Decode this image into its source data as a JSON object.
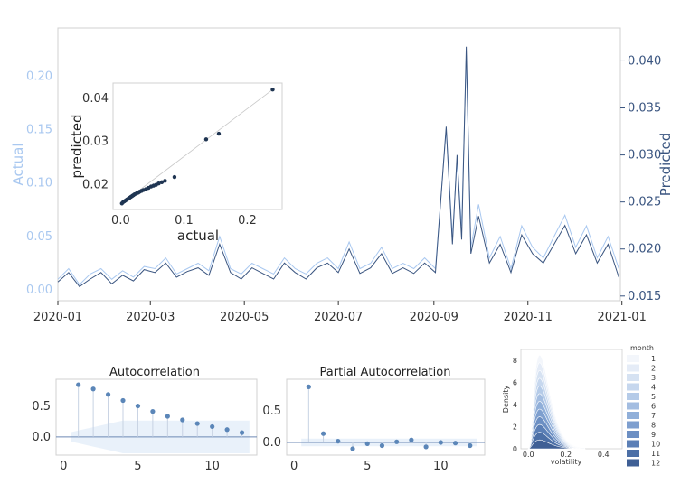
{
  "colors": {
    "actual": "#a9c8f0",
    "predicted": "#3a5580",
    "acf_band": "#dbe7f6",
    "grid": "#e8ecf2"
  },
  "chart_data": [
    {
      "type": "line",
      "xlabel": "",
      "ylabel_left": "Actual",
      "ylabel_right": "Predicted",
      "x_range": [
        "2020-01-01",
        "2020-12-31"
      ],
      "x_ticks": [
        "2020-01",
        "2020-03",
        "2020-05",
        "2020-07",
        "2020-09",
        "2020-11",
        "2021-01"
      ],
      "ylim_left": [
        -0.01,
        0.245
      ],
      "yticks_left": [
        "0.00",
        "0.05",
        "0.10",
        "0.15",
        "0.20"
      ],
      "ylim_right": [
        0.0145,
        0.0435
      ],
      "yticks_right": [
        "0.015",
        "0.020",
        "0.025",
        "0.030",
        "0.035",
        "0.040"
      ],
      "series": [
        {
          "axis": "left",
          "dates": [
            "2020-01-01",
            "2020-01-08",
            "2020-01-15",
            "2020-01-22",
            "2020-01-29",
            "2020-02-05",
            "2020-02-12",
            "2020-02-19",
            "2020-02-26",
            "2020-03-04",
            "2020-03-11",
            "2020-03-18",
            "2020-03-25",
            "2020-04-01",
            "2020-04-08",
            "2020-04-15",
            "2020-04-22",
            "2020-04-29",
            "2020-05-06",
            "2020-05-13",
            "2020-05-20",
            "2020-05-27",
            "2020-06-03",
            "2020-06-10",
            "2020-06-17",
            "2020-06-24",
            "2020-07-01",
            "2020-07-08",
            "2020-07-15",
            "2020-07-22",
            "2020-07-29",
            "2020-08-05",
            "2020-08-12",
            "2020-08-19",
            "2020-08-26",
            "2020-09-02",
            "2020-09-09",
            "2020-09-13",
            "2020-09-16",
            "2020-09-19",
            "2020-09-22",
            "2020-09-25",
            "2020-09-30",
            "2020-10-07",
            "2020-10-14",
            "2020-10-21",
            "2020-10-28",
            "2020-11-04",
            "2020-11-11",
            "2020-11-18",
            "2020-11-25",
            "2020-12-02",
            "2020-12-09",
            "2020-12-16",
            "2020-12-23",
            "2020-12-30"
          ],
          "values": [
            0.01,
            0.02,
            0.005,
            0.015,
            0.02,
            0.01,
            0.018,
            0.012,
            0.022,
            0.02,
            0.03,
            0.015,
            0.02,
            0.025,
            0.018,
            0.05,
            0.02,
            0.015,
            0.025,
            0.02,
            0.015,
            0.03,
            0.02,
            0.015,
            0.025,
            0.03,
            0.02,
            0.045,
            0.02,
            0.025,
            0.04,
            0.02,
            0.025,
            0.02,
            0.03,
            0.02,
            0.15,
            0.05,
            0.12,
            0.06,
            0.22,
            0.04,
            0.08,
            0.03,
            0.05,
            0.02,
            0.06,
            0.04,
            0.03,
            0.05,
            0.07,
            0.04,
            0.06,
            0.03,
            0.05,
            0.02
          ]
        },
        {
          "axis": "right",
          "dates": [
            "2020-01-01",
            "2020-01-08",
            "2020-01-15",
            "2020-01-22",
            "2020-01-29",
            "2020-02-05",
            "2020-02-12",
            "2020-02-19",
            "2020-02-26",
            "2020-03-04",
            "2020-03-11",
            "2020-03-18",
            "2020-03-25",
            "2020-04-01",
            "2020-04-08",
            "2020-04-15",
            "2020-04-22",
            "2020-04-29",
            "2020-05-06",
            "2020-05-13",
            "2020-05-20",
            "2020-05-27",
            "2020-06-03",
            "2020-06-10",
            "2020-06-17",
            "2020-06-24",
            "2020-07-01",
            "2020-07-08",
            "2020-07-15",
            "2020-07-22",
            "2020-07-29",
            "2020-08-05",
            "2020-08-12",
            "2020-08-19",
            "2020-08-26",
            "2020-09-02",
            "2020-09-09",
            "2020-09-13",
            "2020-09-16",
            "2020-09-19",
            "2020-09-22",
            "2020-09-25",
            "2020-09-30",
            "2020-10-07",
            "2020-10-14",
            "2020-10-21",
            "2020-10-28",
            "2020-11-04",
            "2020-11-11",
            "2020-11-18",
            "2020-11-25",
            "2020-12-02",
            "2020-12-09",
            "2020-12-16",
            "2020-12-23",
            "2020-12-30"
          ],
          "values": [
            0.0165,
            0.0175,
            0.016,
            0.0168,
            0.0175,
            0.0163,
            0.0172,
            0.0166,
            0.0178,
            0.0175,
            0.0185,
            0.017,
            0.0176,
            0.018,
            0.0172,
            0.0205,
            0.0175,
            0.0168,
            0.018,
            0.0174,
            0.0168,
            0.0185,
            0.0175,
            0.0168,
            0.018,
            0.0185,
            0.0175,
            0.02,
            0.0174,
            0.018,
            0.0195,
            0.0174,
            0.018,
            0.0174,
            0.0185,
            0.0175,
            0.033,
            0.0205,
            0.03,
            0.021,
            0.0415,
            0.0195,
            0.0235,
            0.0185,
            0.0205,
            0.0175,
            0.0215,
            0.0195,
            0.0185,
            0.0205,
            0.0225,
            0.0195,
            0.0215,
            0.0185,
            0.0205,
            0.017
          ]
        }
      ]
    },
    {
      "type": "scatter",
      "xlabel": "actual",
      "ylabel": "predicted",
      "xlim": [
        -0.012,
        0.255
      ],
      "ylim": [
        0.0143,
        0.0435
      ],
      "xticks": [
        "0.0",
        "0.1",
        "0.2"
      ],
      "yticks": [
        "0.02",
        "0.03",
        "0.04"
      ],
      "x": [
        0.002,
        0.004,
        0.006,
        0.008,
        0.01,
        0.012,
        0.014,
        0.016,
        0.018,
        0.02,
        0.022,
        0.025,
        0.028,
        0.03,
        0.033,
        0.036,
        0.04,
        0.044,
        0.048,
        0.052,
        0.056,
        0.06,
        0.065,
        0.07,
        0.085,
        0.135,
        0.155,
        0.24
      ],
      "y": [
        0.0157,
        0.016,
        0.0162,
        0.0164,
        0.0166,
        0.0168,
        0.017,
        0.0172,
        0.0174,
        0.0176,
        0.0178,
        0.018,
        0.0182,
        0.0184,
        0.0186,
        0.0188,
        0.019,
        0.0193,
        0.0196,
        0.0198,
        0.02,
        0.0203,
        0.0206,
        0.0209,
        0.0218,
        0.0305,
        0.0318,
        0.042
      ]
    },
    {
      "type": "bar",
      "subtype": "stem",
      "title": "Autocorrelation",
      "xlabel": "",
      "ylabel": "",
      "xlim": [
        -0.5,
        13
      ],
      "ylim": [
        -0.3,
        0.95
      ],
      "xticks": [
        "0",
        "5",
        "10"
      ],
      "yticks": [
        "0.0",
        "0.5"
      ],
      "lags": [
        1,
        2,
        3,
        4,
        5,
        6,
        7,
        8,
        9,
        10,
        11,
        12
      ],
      "values": [
        0.86,
        0.79,
        0.7,
        0.6,
        0.51,
        0.42,
        0.34,
        0.28,
        0.22,
        0.17,
        0.12,
        0.07
      ]
    },
    {
      "type": "bar",
      "subtype": "stem",
      "title": "Partial Autocorrelation",
      "xlabel": "",
      "ylabel": "",
      "xlim": [
        -0.5,
        13
      ],
      "ylim": [
        -0.2,
        1.0
      ],
      "xticks": [
        "0",
        "5",
        "10"
      ],
      "yticks": [
        "0.0",
        "0.5"
      ],
      "lags": [
        1,
        2,
        3,
        4,
        5,
        6,
        7,
        8,
        9,
        10,
        11,
        12
      ],
      "values": [
        0.88,
        0.14,
        0.02,
        -0.1,
        -0.02,
        -0.05,
        0.01,
        0.04,
        -0.07,
        0.0,
        -0.01,
        -0.05
      ]
    },
    {
      "type": "area",
      "xlabel": "volatility",
      "ylabel": "Density",
      "xlim": [
        -0.04,
        0.5
      ],
      "ylim": [
        0,
        9
      ],
      "xticks": [
        "0.0",
        "0.2",
        "0.4"
      ],
      "yticks": [
        "0",
        "2",
        "4",
        "6",
        "8"
      ],
      "legend_title": "month",
      "legend_position": "right",
      "series": [
        {
          "name": "1",
          "peak": 8.5
        },
        {
          "name": "2",
          "peak": 7.8
        },
        {
          "name": "3",
          "peak": 7.1
        },
        {
          "name": "4",
          "peak": 6.4
        },
        {
          "name": "5",
          "peak": 5.7
        },
        {
          "name": "6",
          "peak": 5.0
        },
        {
          "name": "7",
          "peak": 4.3
        },
        {
          "name": "8",
          "peak": 3.6
        },
        {
          "name": "9",
          "peak": 2.9
        },
        {
          "name": "10",
          "peak": 2.2
        },
        {
          "name": "11",
          "peak": 1.5
        },
        {
          "name": "12",
          "peak": 0.8
        }
      ],
      "legend_colors": [
        "#f3f6fb",
        "#e5ecf7",
        "#d6e2f2",
        "#c6d7ee",
        "#b5cbe8",
        "#a3bde1",
        "#90afd9",
        "#7e9fcf",
        "#6c8fc3",
        "#5b7fb6",
        "#4c6fa6",
        "#3f5f95"
      ]
    }
  ]
}
